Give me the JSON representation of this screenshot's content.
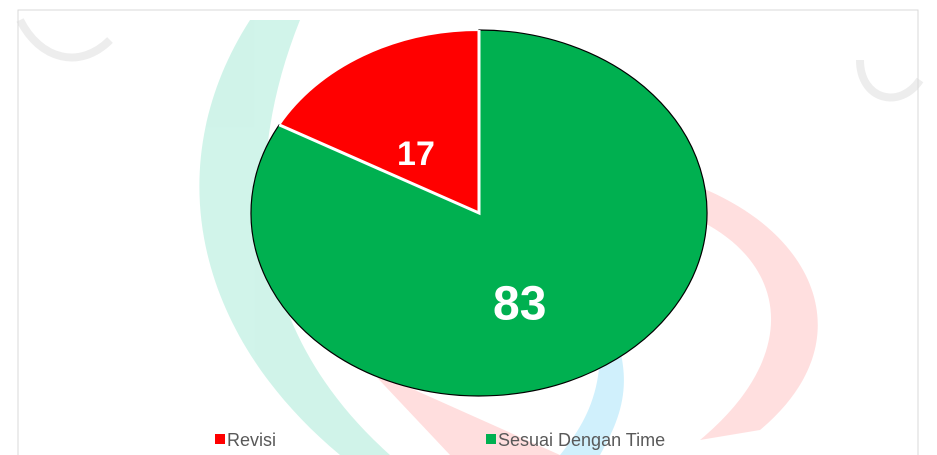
{
  "chart_data": {
    "type": "pie",
    "categories": [
      "Revisi",
      "Sesuai Dengan Time"
    ],
    "values": [
      17,
      83
    ],
    "colors": [
      "#ff0000",
      "#00b050"
    ],
    "legend": "bottom"
  }
}
